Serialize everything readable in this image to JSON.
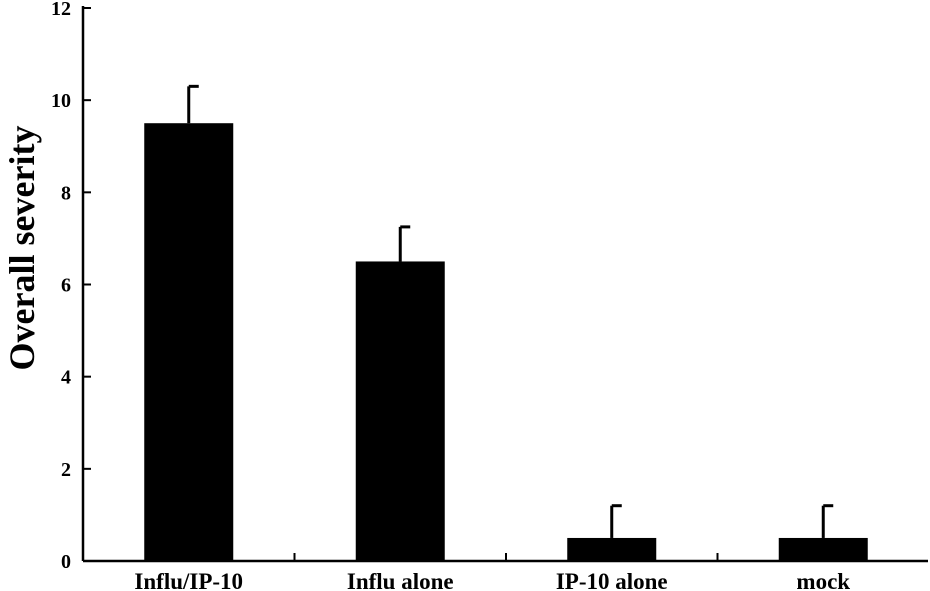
{
  "chart_data": {
    "type": "bar",
    "title": "",
    "xlabel": "",
    "ylabel": "Overall severity",
    "categories": [
      "Influ/IP-10",
      "Influ alone",
      "IP-10 alone",
      "mock"
    ],
    "series": [
      {
        "values": [
          9.5,
          6.5,
          0.5,
          0.5
        ],
        "errors": [
          0.8,
          0.75,
          0.7,
          0.7
        ]
      }
    ],
    "ylim": [
      0,
      12
    ],
    "yticks": [
      0,
      2,
      4,
      6,
      8,
      10,
      12
    ],
    "grid": false,
    "legend": "none",
    "colors": {
      "bar": "#000000",
      "axis": "#000000"
    }
  }
}
